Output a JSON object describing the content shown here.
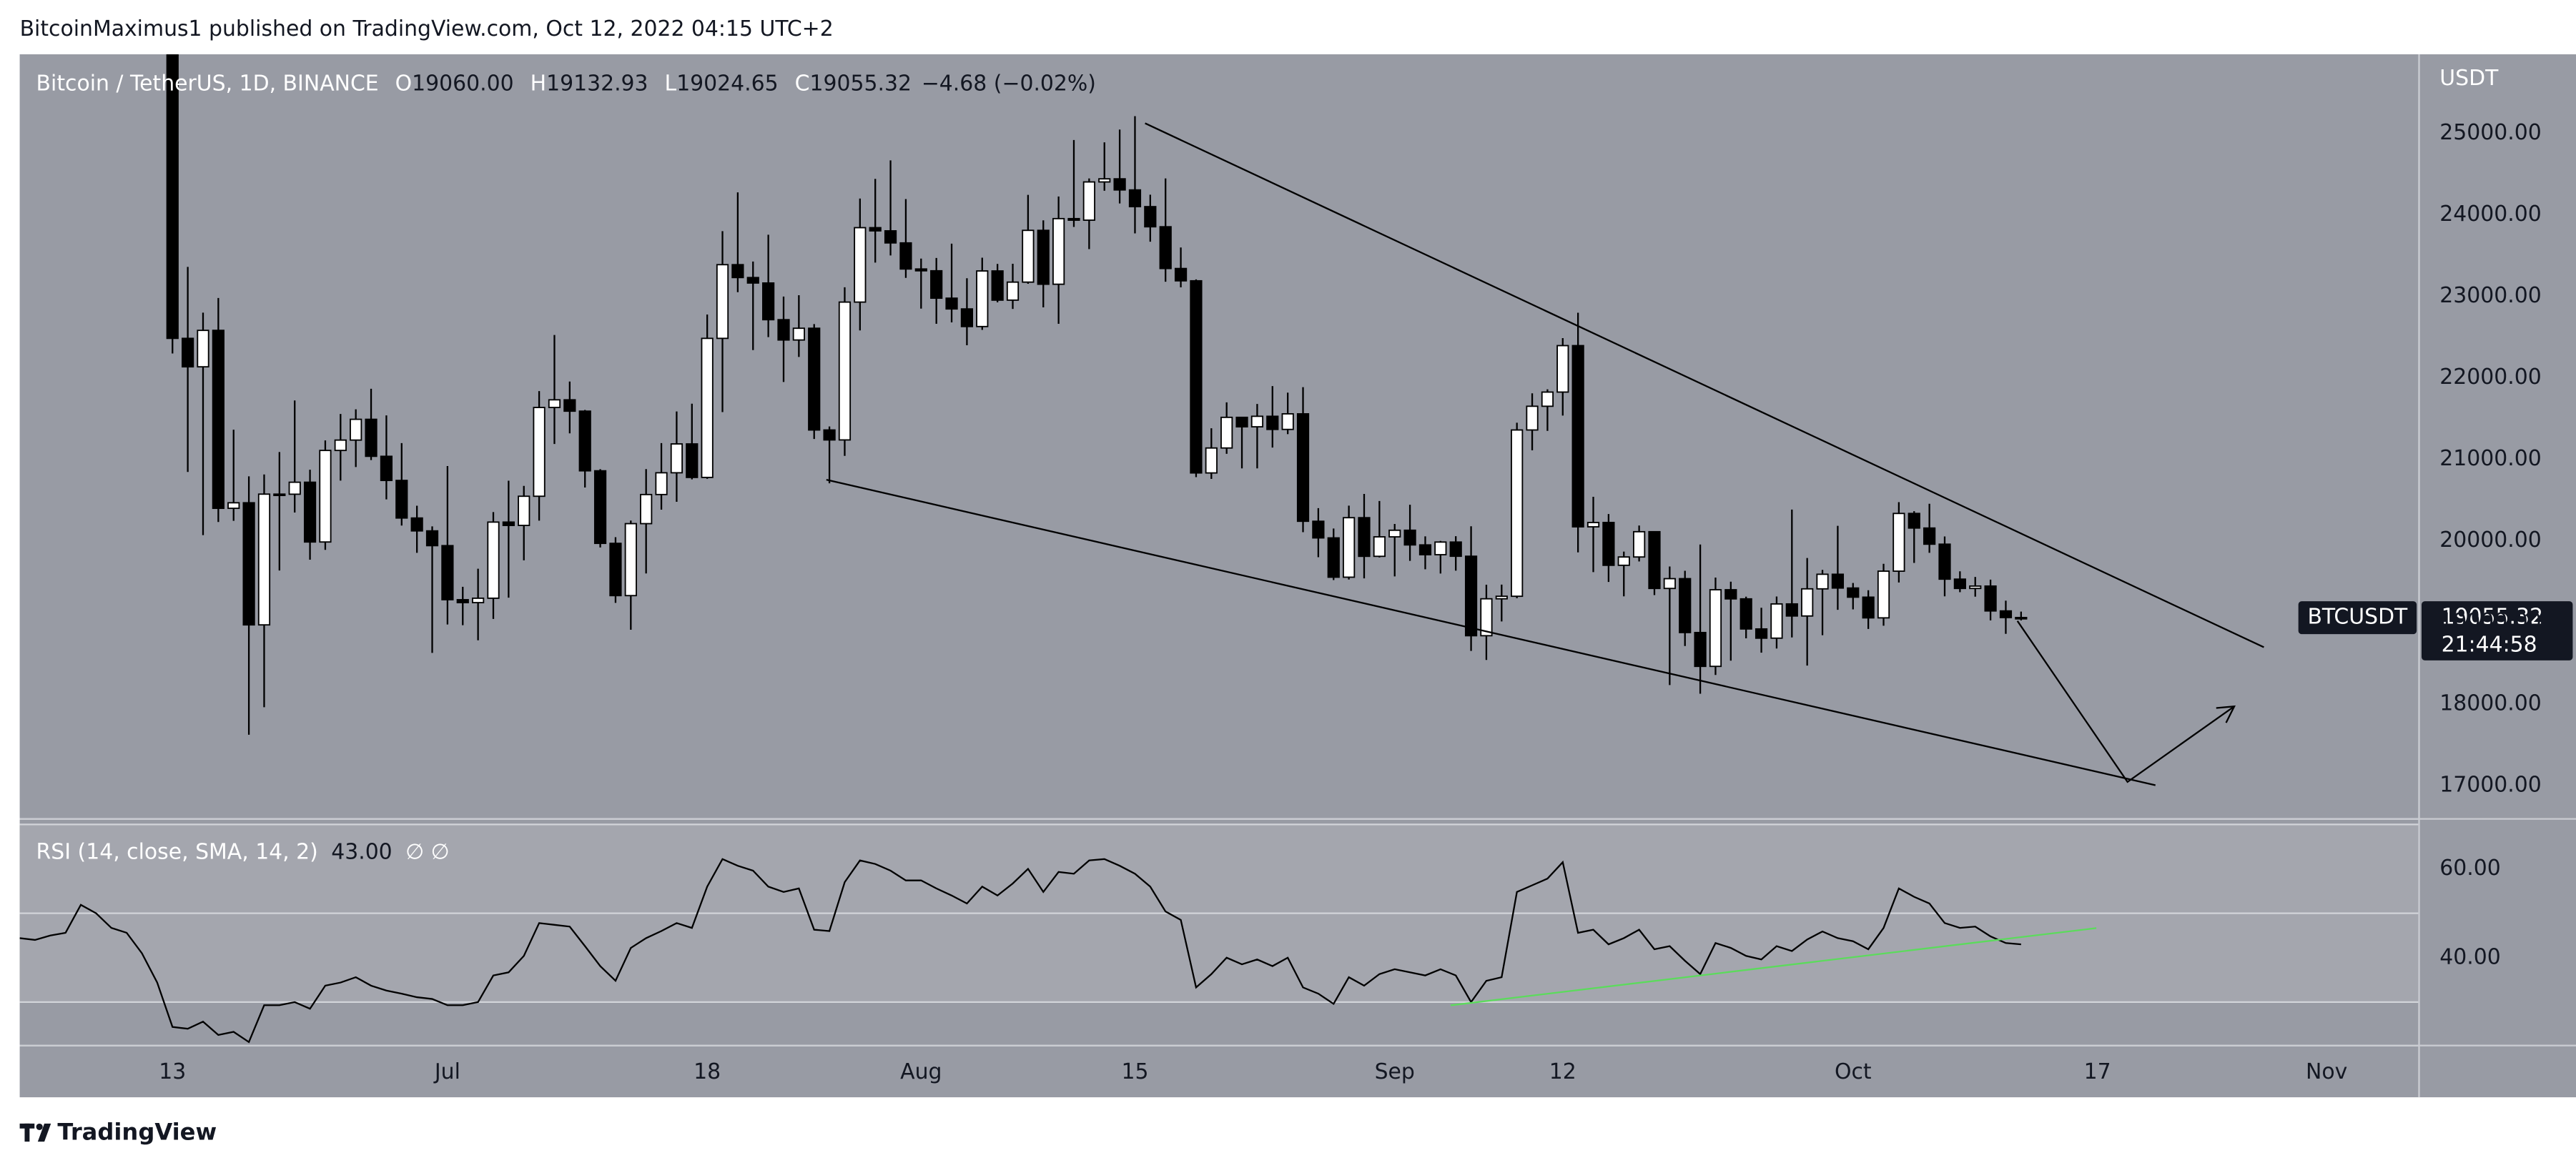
{
  "header": {
    "text": "BitcoinMaximus1 published on TradingView.com, Oct 12, 2022 04:15 UTC+2"
  },
  "footer": {
    "brand": "TradingView"
  },
  "chart_data": {
    "type": "candlestick",
    "legend": {
      "symbol": "Bitcoin / TetherUS, 1D, BINANCE",
      "fields": [
        {
          "key": "O",
          "value": "19060.00"
        },
        {
          "key": "H",
          "value": "19132.93"
        },
        {
          "key": "L",
          "value": "19024.65"
        },
        {
          "key": "C",
          "value": "19055.32"
        }
      ],
      "change": "−4.68 (−0.02%)"
    },
    "currency": "USDT",
    "up_color": "#ffffff",
    "down_color": "#000000",
    "border_color": "#000000",
    "x": [
      "2022-06-03",
      "2022-06-04",
      "2022-06-05",
      "2022-06-06",
      "2022-06-07",
      "2022-06-08",
      "2022-06-09",
      "2022-06-10",
      "2022-06-11",
      "2022-06-12",
      "2022-06-13",
      "2022-06-14",
      "2022-06-15",
      "2022-06-16",
      "2022-06-17",
      "2022-06-18",
      "2022-06-19",
      "2022-06-20",
      "2022-06-21",
      "2022-06-22",
      "2022-06-23",
      "2022-06-24",
      "2022-06-25",
      "2022-06-26",
      "2022-06-27",
      "2022-06-28",
      "2022-06-29",
      "2022-06-30",
      "2022-07-01",
      "2022-07-02",
      "2022-07-03",
      "2022-07-04",
      "2022-07-05",
      "2022-07-06",
      "2022-07-07",
      "2022-07-08",
      "2022-07-09",
      "2022-07-10",
      "2022-07-11",
      "2022-07-12",
      "2022-07-13",
      "2022-07-14",
      "2022-07-15",
      "2022-07-16",
      "2022-07-17",
      "2022-07-18",
      "2022-07-19",
      "2022-07-20",
      "2022-07-21",
      "2022-07-22",
      "2022-07-23",
      "2022-07-24",
      "2022-07-25",
      "2022-07-26",
      "2022-07-27",
      "2022-07-28",
      "2022-07-29",
      "2022-07-30",
      "2022-07-31",
      "2022-08-01",
      "2022-08-02",
      "2022-08-03",
      "2022-08-04",
      "2022-08-05",
      "2022-08-06",
      "2022-08-07",
      "2022-08-08",
      "2022-08-09",
      "2022-08-10",
      "2022-08-11",
      "2022-08-12",
      "2022-08-13",
      "2022-08-14",
      "2022-08-15",
      "2022-08-16",
      "2022-08-17",
      "2022-08-18",
      "2022-08-19",
      "2022-08-20",
      "2022-08-21",
      "2022-08-22",
      "2022-08-23",
      "2022-08-24",
      "2022-08-25",
      "2022-08-26",
      "2022-08-27",
      "2022-08-28",
      "2022-08-29",
      "2022-08-30",
      "2022-08-31",
      "2022-09-01",
      "2022-09-02",
      "2022-09-03",
      "2022-09-04",
      "2022-09-05",
      "2022-09-06",
      "2022-09-07",
      "2022-09-08",
      "2022-09-09",
      "2022-09-10",
      "2022-09-11",
      "2022-09-12",
      "2022-09-13",
      "2022-09-14",
      "2022-09-15",
      "2022-09-16",
      "2022-09-17",
      "2022-09-18",
      "2022-09-19",
      "2022-09-20",
      "2022-09-21",
      "2022-09-22",
      "2022-09-23",
      "2022-09-24",
      "2022-09-25",
      "2022-09-26",
      "2022-09-27",
      "2022-09-28",
      "2022-09-29",
      "2022-09-30",
      "2022-10-01",
      "2022-10-02",
      "2022-10-03",
      "2022-10-04",
      "2022-10-05",
      "2022-10-06",
      "2022-10-07",
      "2022-10-08",
      "2022-10-09",
      "2022-10-10",
      "2022-10-11",
      "2022-10-12"
    ],
    "open": [
      null,
      null,
      null,
      null,
      null,
      null,
      null,
      null,
      null,
      null,
      26574,
      22485,
      22136,
      22583,
      20400,
      20468,
      18970,
      20574,
      20573,
      20720,
      19987,
      21110,
      21237,
      21492,
      21038,
      20742,
      20281,
      20123,
      19942,
      19279,
      19243,
      19297,
      20231,
      20190,
      20548,
      21637,
      21731,
      21592,
      20860,
      19970,
      19329,
      20212,
      20569,
      20836,
      21190,
      20779,
      22485,
      23389,
      23231,
      23164,
      22714,
      22465,
      22609,
      21361,
      21239,
      22930,
      23843,
      23804,
      23656,
      23336,
      23314,
      22978,
      22846,
      22630,
      23312,
      22954,
      23175,
      23810,
      23149,
      23954,
      23935,
      24404,
      24442,
      24306,
      24101,
      23854,
      23342,
      23191,
      20834,
      21140,
      21516,
      21400,
      21529,
      21368,
      21559,
      20241,
      20037,
      19555,
      20285,
      19811,
      20050,
      20131,
      19951,
      19831,
      19986,
      19812,
      18837,
      19290,
      19321,
      21361,
      21652,
      21826,
      22396,
      20173,
      20226,
      19701,
      19803,
      20113,
      19417,
      19537,
      18876,
      18461,
      19401,
      19289,
      18920,
      18807,
      19227,
      19079,
      19412,
      19591,
      19422,
      19310,
      19056,
      19629,
      20337,
      20158,
      19960,
      19531,
      19417,
      19446,
      19141,
      19060
    ],
    "high": [
      null,
      null,
      null,
      null,
      null,
      null,
      null,
      null,
      null,
      null,
      26895,
      23362,
      22800,
      22980,
      21365,
      20792,
      20815,
      21090,
      21723,
      20873,
      21233,
      21558,
      21614,
      21867,
      21540,
      21200,
      20432,
      20179,
      20918,
      19437,
      19659,
      20354,
      20739,
      20675,
      21838,
      22527,
      21955,
      21607,
      20880,
      20046,
      20250,
      20881,
      21200,
      21588,
      21684,
      22777,
      23800,
      24276,
      23427,
      23756,
      22998,
      23014,
      22660,
      21404,
      23112,
      24200,
      24442,
      24668,
      24194,
      23464,
      23471,
      23647,
      23223,
      23475,
      23398,
      23400,
      24245,
      23933,
      24226,
      24918,
      24447,
      24890,
      25047,
      25211,
      24247,
      24447,
      23600,
      23208,
      21382,
      21700,
      21522,
      21680,
      21900,
      21819,
      21886,
      20402,
      20152,
      20433,
      20576,
      20490,
      20208,
      20444,
      20056,
      20000,
      20058,
      20180,
      19463,
      19464,
      21450,
      21811,
      21860,
      22488,
      22799,
      20541,
      20330,
      19869,
      20189,
      20117,
      19686,
      19634,
      19956,
      19550,
      19500,
      19316,
      19180,
      19318,
      20385,
      19790,
      19645,
      20185,
      19484,
      19395,
      19719,
      20475,
      20365,
      20456,
      20055,
      19627,
      19558,
      19525,
      19267,
      19132.93
    ],
    "low": [
      null,
      null,
      null,
      null,
      null,
      null,
      null,
      null,
      null,
      null,
      22300,
      20846,
      20071,
      20232,
      20246,
      17622,
      17960,
      19637,
      20348,
      19770,
      19890,
      20740,
      20906,
      20992,
      20510,
      20188,
      19854,
      18626,
      18975,
      18966,
      18781,
      19043,
      19304,
      19762,
      20249,
      21189,
      21320,
      20655,
      19920,
      19240,
      18910,
      19601,
      20383,
      20480,
      20755,
      20762,
      21581,
      23052,
      22341,
      22500,
      21950,
      22257,
      21250,
      20707,
      21043,
      22582,
      23414,
      23502,
      23227,
      22850,
      22664,
      22681,
      22400,
      22589,
      22927,
      22846,
      23155,
      22865,
      22664,
      23852,
      23580,
      24296,
      24140,
      23773,
      23671,
      23180,
      23111,
      20783,
      20761,
      21069,
      20890,
      20890,
      21145,
      21310,
      20107,
      19800,
      19520,
      19526,
      19540,
      19797,
      19565,
      19755,
      19652,
      19600,
      19635,
      18650,
      18540,
      19012,
      19297,
      21111,
      21350,
      21538,
      19860,
      19617,
      19497,
      19320,
      19748,
      19335,
      18232,
      18711,
      18125,
      18356,
      18531,
      18805,
      18629,
      18680,
      18816,
      18471,
      18843,
      19155,
      19160,
      18920,
      18959,
      19490,
      19730,
      19854,
      19320,
      19371,
      19316,
      19025,
      18860,
      19024.65
    ],
    "close": [
      null,
      null,
      null,
      null,
      null,
      null,
      null,
      null,
      null,
      null,
      22485,
      22136,
      22583,
      20400,
      20468,
      18970,
      20574,
      20573,
      20720,
      19987,
      21110,
      21237,
      21492,
      21038,
      20742,
      20281,
      20123,
      19942,
      19279,
      19243,
      19297,
      20231,
      20190,
      20548,
      21637,
      21731,
      21592,
      20860,
      19970,
      19329,
      20212,
      20569,
      20836,
      21190,
      20779,
      22485,
      23389,
      23231,
      23164,
      22714,
      22465,
      22609,
      21361,
      21239,
      22930,
      23843,
      23804,
      23656,
      23336,
      23314,
      22978,
      22846,
      22630,
      23312,
      22954,
      23175,
      23810,
      23149,
      23954,
      23935,
      24404,
      24442,
      24306,
      24101,
      23854,
      23342,
      23191,
      20834,
      21140,
      21516,
      21400,
      21529,
      21368,
      21559,
      20241,
      20037,
      19555,
      20285,
      19811,
      20050,
      20131,
      19951,
      19831,
      19986,
      19812,
      18837,
      19290,
      19321,
      21361,
      21652,
      21826,
      22396,
      20173,
      20226,
      19701,
      19803,
      20113,
      19417,
      19537,
      18876,
      18461,
      19401,
      19289,
      18920,
      18807,
      19227,
      19079,
      19412,
      19591,
      19422,
      19310,
      19056,
      19629,
      20337,
      20158,
      19960,
      19531,
      19417,
      19446,
      19141,
      19060,
      19055.32
    ],
    "xlim": [
      "2022-06-03",
      "2022-11-07"
    ],
    "xticks": [
      {
        "value": "2022-06-13",
        "label": "13"
      },
      {
        "value": "2022-07-01",
        "label": "Jul"
      },
      {
        "value": "2022-07-18",
        "label": "18"
      },
      {
        "value": "2022-08-01",
        "label": "Aug"
      },
      {
        "value": "2022-08-15",
        "label": "15"
      },
      {
        "value": "2022-09-01",
        "label": "Sep"
      },
      {
        "value": "2022-09-12",
        "label": "12"
      },
      {
        "value": "2022-10-01",
        "label": "Oct"
      },
      {
        "value": "2022-10-17",
        "label": "17"
      },
      {
        "value": "2022-11-01",
        "label": "Nov"
      }
    ],
    "ylim": [
      16600,
      25970
    ],
    "yticks": [
      {
        "value": 17000,
        "label": "17000.00"
      },
      {
        "value": 18000,
        "label": "18000.00"
      },
      {
        "value": 19000,
        "label": "19000.00"
      },
      {
        "value": 20000,
        "label": "20000.00"
      },
      {
        "value": 21000,
        "label": "21000.00"
      },
      {
        "value": 22000,
        "label": "22000.00"
      },
      {
        "value": 23000,
        "label": "23000.00"
      },
      {
        "value": 24000,
        "label": "24000.00"
      },
      {
        "value": 25000,
        "label": "25000.00"
      }
    ],
    "last_price": {
      "symbol": "BTCUSDT",
      "countdown": "21:44:58"
    },
    "rsi": {
      "title": "RSI (14, close, SMA, 14, 2)",
      "value_label": "43.00",
      "extras": "∅ ∅",
      "color": "#000000",
      "values": [
        44.4,
        44,
        45,
        45.6,
        51.9,
        50,
        46.7,
        45.6,
        41,
        34.4,
        24.4,
        24,
        25.6,
        22.6,
        23.3,
        21,
        29.3,
        29.3,
        30,
        28.5,
        33.7,
        34.4,
        35.6,
        33.7,
        32.6,
        31.9,
        31.1,
        30.7,
        29.3,
        29.3,
        30,
        36,
        36.7,
        40.4,
        47.8,
        47.4,
        47,
        42.6,
        38.1,
        34.8,
        42.2,
        44.4,
        46,
        47.8,
        46.7,
        56,
        62.2,
        60.7,
        59.6,
        56,
        54.8,
        55.6,
        46.3,
        46,
        57,
        61.9,
        61.1,
        59.6,
        57.4,
        57.4,
        55.6,
        54,
        52.2,
        56,
        54,
        56.7,
        60,
        54.8,
        59.3,
        58.9,
        61.9,
        62.2,
        60.7,
        58.9,
        56,
        50.4,
        48.5,
        33.3,
        36.3,
        40,
        38.5,
        39.6,
        38.1,
        40,
        33.3,
        31.9,
        29.6,
        35.6,
        33.7,
        36.3,
        37.4,
        36.7,
        36,
        37.4,
        36,
        30,
        34.8,
        35.6,
        54.8,
        56.3,
        57.8,
        61.5,
        45.6,
        46.3,
        43,
        44.4,
        46.3,
        41.9,
        42.6,
        39.3,
        36.3,
        43.3,
        42.2,
        40.4,
        39.6,
        42.6,
        41.5,
        44.1,
        45.9,
        44.4,
        43.7,
        41.9,
        46.7,
        55.6,
        53.7,
        52.2,
        47.8,
        46.7,
        47,
        44.8,
        43.3,
        43
      ],
      "ylim": [
        20.4,
        70.7
      ],
      "yticks": [
        {
          "value": 40,
          "label": "40.00"
        },
        {
          "value": 60,
          "label": "60.00"
        }
      ],
      "bands": [
        70,
        50,
        30
      ]
    }
  }
}
